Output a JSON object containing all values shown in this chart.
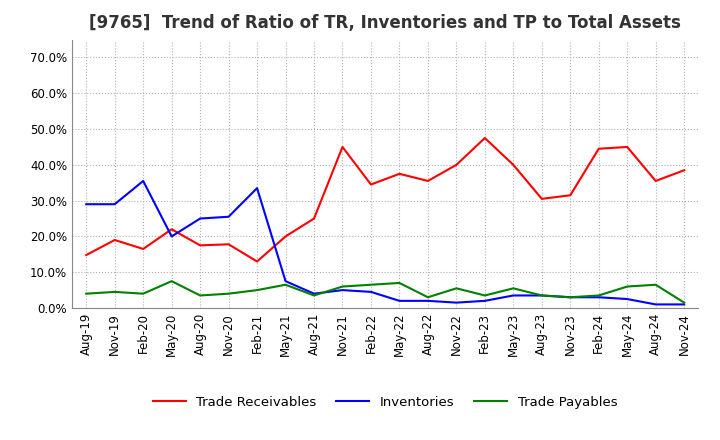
{
  "title": "[9765]  Trend of Ratio of TR, Inventories and TP to Total Assets",
  "x_labels": [
    "Aug-19",
    "Nov-19",
    "Feb-20",
    "May-20",
    "Aug-20",
    "Nov-20",
    "Feb-21",
    "May-21",
    "Aug-21",
    "Nov-21",
    "Feb-22",
    "May-22",
    "Aug-22",
    "Nov-22",
    "Feb-23",
    "May-23",
    "Aug-23",
    "Nov-23",
    "Feb-24",
    "May-24",
    "Aug-24",
    "Nov-24"
  ],
  "trade_receivables": [
    0.148,
    0.19,
    0.165,
    0.22,
    0.175,
    0.178,
    0.13,
    0.2,
    0.25,
    0.45,
    0.345,
    0.375,
    0.355,
    0.4,
    0.475,
    0.4,
    0.305,
    0.315,
    0.445,
    0.45,
    0.355,
    0.385
  ],
  "inventories": [
    0.29,
    0.29,
    0.355,
    0.2,
    0.25,
    0.255,
    0.335,
    0.075,
    0.04,
    0.05,
    0.045,
    0.02,
    0.02,
    0.015,
    0.02,
    0.035,
    0.035,
    0.03,
    0.03,
    0.025,
    0.01,
    0.01
  ],
  "trade_payables": [
    0.04,
    0.045,
    0.04,
    0.075,
    0.035,
    0.04,
    0.05,
    0.065,
    0.035,
    0.06,
    0.065,
    0.07,
    0.03,
    0.055,
    0.035,
    0.055,
    0.035,
    0.03,
    0.035,
    0.06,
    0.065,
    0.015
  ],
  "tr_color": "#ff0000",
  "inv_color": "#0000ff",
  "tp_color": "#008000",
  "ylim": [
    0.0,
    0.75
  ],
  "yticks": [
    0.0,
    0.1,
    0.2,
    0.3,
    0.4,
    0.5,
    0.6,
    0.7
  ],
  "background_color": "#ffffff",
  "grid_color": "#b0b0b0",
  "legend_labels": [
    "Trade Receivables",
    "Inventories",
    "Trade Payables"
  ],
  "title_fontsize": 12,
  "axis_fontsize": 8.5,
  "legend_fontsize": 9.5
}
